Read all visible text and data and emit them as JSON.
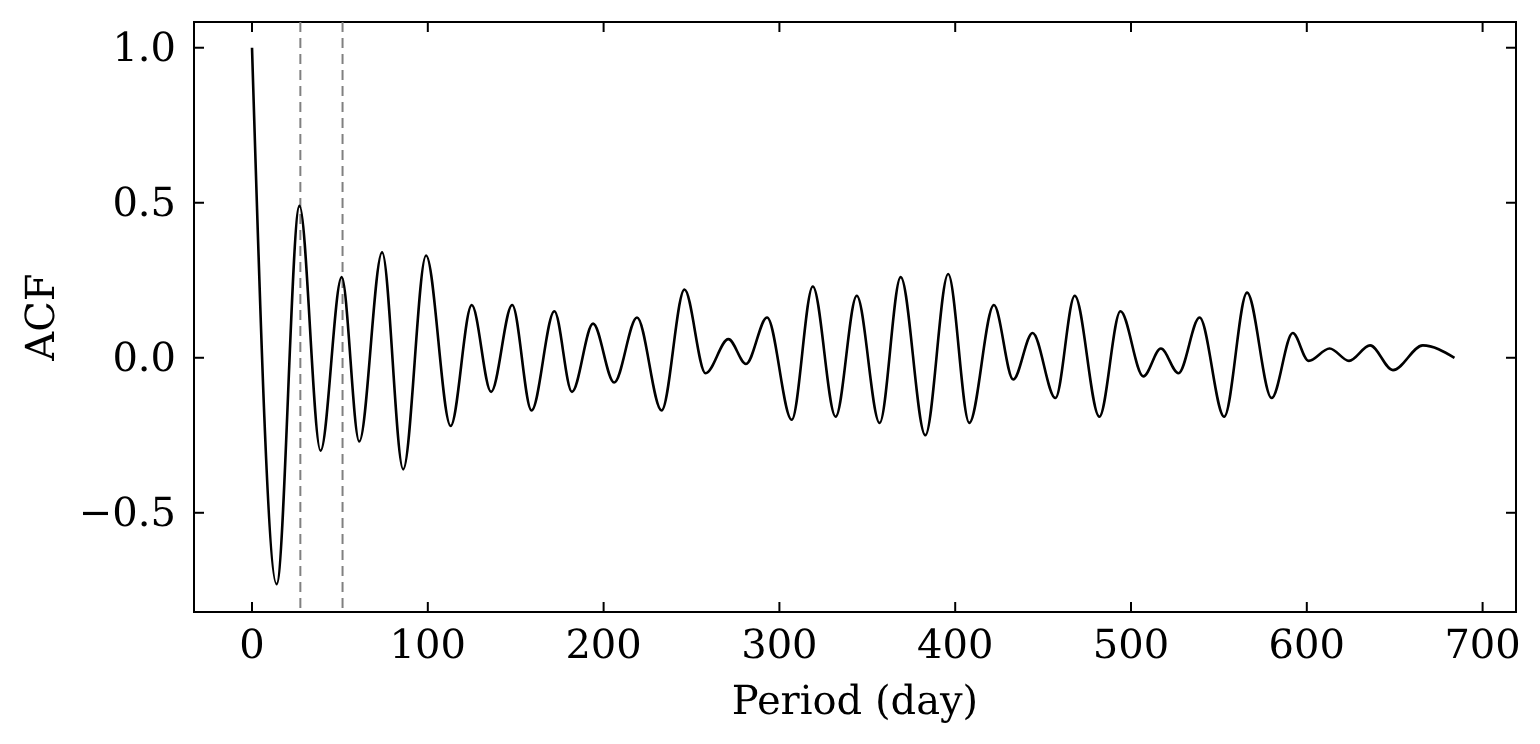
{
  "chart_data": {
    "type": "line",
    "xlabel": "Period (day)",
    "ylabel": "ACF",
    "xlim": [
      -33,
      719
    ],
    "ylim": [
      -0.82,
      1.083
    ],
    "xticks": [
      0,
      100,
      200,
      300,
      400,
      500,
      600,
      700
    ],
    "yticks": [
      {
        "value": -0.5,
        "label": "−0.5"
      },
      {
        "value": 0,
        "label": "0.0"
      },
      {
        "value": 0.5,
        "label": "0.5"
      },
      {
        "value": 1,
        "label": "1.0"
      }
    ],
    "grid": false,
    "marker": "none",
    "line_style": "solid",
    "ref_lines": [
      {
        "axis": "x",
        "value": 27.5,
        "label": null,
        "color": "#808080",
        "line_style": "dashed"
      },
      {
        "axis": "x",
        "value": 51.5,
        "label": null,
        "color": "#808080",
        "line_style": "dashed"
      }
    ],
    "series": [
      {
        "color": "#000000",
        "x": [
          0,
          14,
          27,
          39,
          51,
          61,
          74,
          86,
          99,
          113,
          125,
          136,
          148,
          159,
          172,
          182,
          194,
          206,
          219,
          233,
          246,
          258,
          271,
          281,
          293,
          307,
          319,
          332,
          344,
          357,
          369,
          383,
          396,
          408,
          422,
          433,
          444,
          457,
          468,
          482,
          494,
          507,
          517,
          527,
          539,
          553,
          566,
          580,
          592,
          601,
          613,
          624,
          636,
          649,
          666,
          684
        ],
        "values": [
          1.0,
          -0.73,
          0.49,
          -0.3,
          0.26,
          -0.27,
          0.34,
          -0.36,
          0.33,
          -0.22,
          0.17,
          -0.11,
          0.17,
          -0.17,
          0.15,
          -0.11,
          0.11,
          -0.08,
          0.13,
          -0.17,
          0.22,
          -0.05,
          0.06,
          -0.02,
          0.13,
          -0.2,
          0.23,
          -0.19,
          0.2,
          -0.21,
          0.26,
          -0.25,
          0.27,
          -0.21,
          0.17,
          -0.07,
          0.08,
          -0.13,
          0.2,
          -0.19,
          0.15,
          -0.06,
          0.03,
          -0.05,
          0.13,
          -0.19,
          0.21,
          -0.13,
          0.08,
          -0.01,
          0.03,
          -0.01,
          0.04,
          -0.04,
          0.04,
          0.0
        ]
      }
    ]
  }
}
